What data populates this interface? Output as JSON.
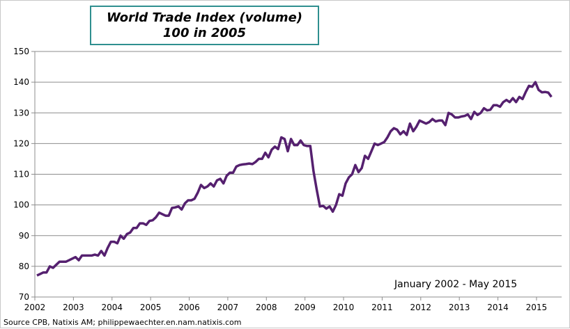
{
  "chart_data": {
    "type": "line",
    "title": "World Trade Index (volume)",
    "subtitle": "100 in 2005",
    "annotation": "January 2002 - May 2015",
    "source": "Source CPB, Natixis AM; philippewaechter.en.nam.natixis.com",
    "xlabel": "",
    "ylabel": "",
    "ylim": [
      70,
      150
    ],
    "yticks": [
      70,
      80,
      90,
      100,
      110,
      120,
      130,
      140,
      150
    ],
    "xticks": [
      "2002",
      "2003",
      "2004",
      "2005",
      "2006",
      "2007",
      "2008",
      "2009",
      "2010",
      "2011",
      "2012",
      "2013",
      "2014",
      "2015"
    ],
    "x_start": "2002-01",
    "x_end": "2015-05",
    "frequency": "monthly",
    "grid": true,
    "line_color": "#55206f",
    "values": [
      77,
      77.5,
      78,
      78,
      80,
      79.5,
      80.5,
      81.5,
      81.5,
      81.5,
      82,
      82.5,
      83,
      82,
      83.5,
      83.5,
      83.5,
      83.5,
      83.8,
      83.5,
      85,
      83.5,
      86,
      88,
      88,
      87.5,
      90,
      89,
      90.5,
      91,
      92.5,
      92.5,
      94,
      94,
      93.5,
      94.8,
      95,
      96,
      97.5,
      97,
      96.5,
      96.5,
      99,
      99.2,
      99.5,
      98.5,
      100.5,
      101.5,
      101.5,
      102,
      104,
      106.5,
      105.5,
      106,
      107,
      106,
      108,
      108.5,
      107,
      109.5,
      110.5,
      110.5,
      112.5,
      113,
      113.2,
      113.3,
      113.5,
      113.3,
      114,
      115,
      115,
      117,
      115.5,
      118,
      119,
      118.2,
      122,
      121.5,
      117.5,
      121.5,
      119.5,
      119.5,
      121,
      119.5,
      119.2,
      119.2,
      111,
      105,
      99.5,
      99.7,
      98.8,
      99.5,
      97.8,
      100,
      103.5,
      103,
      107,
      109,
      110,
      113,
      110.7,
      112,
      116,
      115,
      117.5,
      120,
      119.5,
      120,
      120.5,
      122,
      124,
      125,
      124.5,
      123,
      124,
      122.8,
      126.5,
      124,
      125.5,
      127.5,
      127,
      126.5,
      127,
      128,
      127.2,
      127.5,
      127.5,
      126,
      130,
      129.5,
      128.5,
      128.5,
      128.8,
      129,
      129.5,
      128,
      130.3,
      129.3,
      130,
      131.5,
      130.8,
      131,
      132.5,
      132.5,
      132,
      133.5,
      134.2,
      133.5,
      134.8,
      133.5,
      135.2,
      134.5,
      136.8,
      138.8,
      138.5,
      140,
      137.5,
      136.7,
      136.8,
      136.6,
      135.2
    ]
  }
}
